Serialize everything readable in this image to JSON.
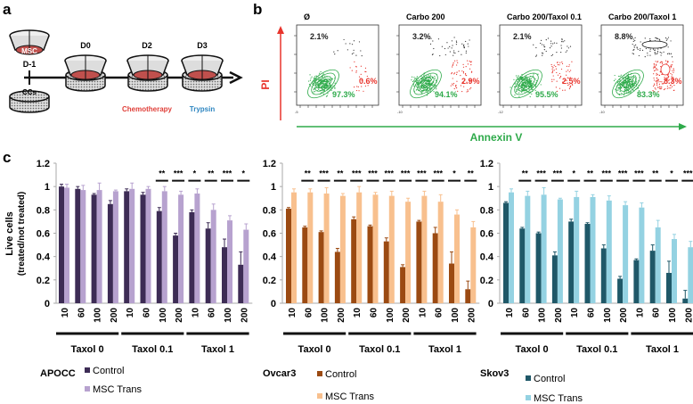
{
  "panels": {
    "a": "a",
    "b": "b",
    "c": "c"
  },
  "panel_a": {
    "msc_label": "MSC",
    "ccs_label": "CCs",
    "days": [
      "D-1",
      "D0",
      "D2",
      "D3"
    ],
    "chemo_label": "Chemotherapy",
    "trypsin_label": "Trypsin",
    "colors": {
      "msc": "#c0504d",
      "chemo": "#e0403a",
      "trypsin": "#2e86c1"
    }
  },
  "panel_b": {
    "y_axis_label": "PI",
    "x_axis_label": "Annexin V",
    "plots": [
      {
        "title": "Ø",
        "necrotic": "2.1%",
        "apoptotic": "0.6%",
        "live": "97.3%",
        "x_min_tick": "-5"
      },
      {
        "title": "Carbo 200",
        "necrotic": "3.2%",
        "apoptotic": "2.9%",
        "live": "94.1%",
        "x_min_tick": "-10"
      },
      {
        "title": "Carbo 200/Taxol 0.1",
        "necrotic": "2.1%",
        "apoptotic": "2.5%",
        "live": "95.5%",
        "x_min_tick": "-12"
      },
      {
        "title": "Carbo 200/Taxol 1",
        "necrotic": "8.8%",
        "apoptotic": "8.3%",
        "live": "83.3%",
        "x_min_tick": "-10"
      }
    ],
    "colors": {
      "live": "#2eaa4a",
      "apoptotic": "#e8342c",
      "necrotic": "#222222",
      "pi_axis": "#e8342c",
      "annexin_axis": "#2eaa4a"
    }
  },
  "chart_data": [
    {
      "type": "bar",
      "title": "APOCC",
      "ylabel": "Live cells (treated/not treated)",
      "ylim": [
        0,
        1.2
      ],
      "yticks": [
        "0",
        "0.2",
        "0.4",
        "0.6",
        "0.8",
        "1",
        "1.2"
      ],
      "categories": [
        "10",
        "60",
        "100",
        "200",
        "10",
        "60",
        "100",
        "200",
        "10",
        "60",
        "100",
        "200"
      ],
      "groups": [
        "Taxol 0",
        "Taxol 0.1",
        "Taxol 1"
      ],
      "series": [
        {
          "name": "Control",
          "color": "#3d2c55",
          "values": [
            1.0,
            0.98,
            0.93,
            0.85,
            0.96,
            0.93,
            0.79,
            0.58,
            0.78,
            0.64,
            0.48,
            0.33
          ],
          "errors": [
            0.02,
            0.02,
            0.01,
            0.03,
            0.02,
            0.02,
            0.03,
            0.02,
            0.02,
            0.05,
            0.07,
            0.11
          ]
        },
        {
          "name": "MSC Trans",
          "color": "#b7a2cf",
          "values": [
            0.99,
            0.97,
            0.97,
            0.96,
            0.98,
            0.98,
            0.96,
            0.93,
            0.94,
            0.8,
            0.71,
            0.63
          ],
          "errors": [
            0.03,
            0.04,
            0.06,
            0.01,
            0.05,
            0.02,
            0.04,
            0.03,
            0.04,
            0.05,
            0.04,
            0.05
          ]
        }
      ],
      "significance": [
        "",
        "",
        "",
        "",
        "",
        "",
        "**",
        "***",
        "*",
        "**",
        "***",
        "*"
      ]
    },
    {
      "type": "bar",
      "title": "Ovcar3",
      "ylabel": "",
      "ylim": [
        0,
        1.2
      ],
      "yticks": [
        "0",
        "0.2",
        "0.4",
        "0.6",
        "0.8",
        "1",
        "1.2"
      ],
      "categories": [
        "10",
        "60",
        "100",
        "200",
        "10",
        "60",
        "100",
        "200",
        "10",
        "60",
        "100",
        "200"
      ],
      "groups": [
        "Taxol 0",
        "Taxol 0.1",
        "Taxol 1"
      ],
      "series": [
        {
          "name": "Control",
          "color": "#9b4a12",
          "values": [
            0.81,
            0.65,
            0.61,
            0.44,
            0.72,
            0.66,
            0.53,
            0.31,
            0.7,
            0.6,
            0.34,
            0.12
          ],
          "errors": [
            0.01,
            0.01,
            0.01,
            0.03,
            0.02,
            0.01,
            0.03,
            0.02,
            0.01,
            0.05,
            0.1,
            0.07
          ]
        },
        {
          "name": "MSC Trans",
          "color": "#f8c08e",
          "values": [
            0.95,
            0.95,
            0.94,
            0.92,
            0.95,
            0.93,
            0.92,
            0.87,
            0.92,
            0.87,
            0.76,
            0.65
          ],
          "errors": [
            0.03,
            0.03,
            0.05,
            0.02,
            0.05,
            0.02,
            0.04,
            0.03,
            0.04,
            0.06,
            0.04,
            0.05
          ]
        }
      ],
      "significance": [
        "",
        "**",
        "***",
        "**",
        "***",
        "***",
        "***",
        "***",
        "***",
        "***",
        "*",
        "**"
      ]
    },
    {
      "type": "bar",
      "title": "Skov3",
      "ylabel": "",
      "ylim": [
        0,
        1.2
      ],
      "yticks": [
        "0",
        "0.2",
        "0.4",
        "0.6",
        "0.8",
        "1",
        "1.2"
      ],
      "categories": [
        "10",
        "60",
        "100",
        "200",
        "10",
        "60",
        "100",
        "200",
        "10",
        "60",
        "100",
        "200"
      ],
      "groups": [
        "Taxol 0",
        "Taxol 0.1",
        "Taxol 1"
      ],
      "series": [
        {
          "name": "Control",
          "color": "#1f5868",
          "values": [
            0.86,
            0.64,
            0.6,
            0.41,
            0.7,
            0.68,
            0.47,
            0.21,
            0.37,
            0.45,
            0.26,
            0.04
          ],
          "errors": [
            0.01,
            0.01,
            0.01,
            0.03,
            0.02,
            0.01,
            0.03,
            0.02,
            0.01,
            0.05,
            0.1,
            0.07
          ]
        },
        {
          "name": "MSC Trans",
          "color": "#94d2e2",
          "values": [
            0.95,
            0.92,
            0.93,
            0.89,
            0.91,
            0.91,
            0.88,
            0.84,
            0.82,
            0.65,
            0.55,
            0.48
          ],
          "errors": [
            0.03,
            0.04,
            0.06,
            0.01,
            0.05,
            0.02,
            0.04,
            0.03,
            0.04,
            0.06,
            0.04,
            0.05
          ]
        }
      ],
      "significance": [
        "",
        "**",
        "***",
        "***",
        "*",
        "**",
        "***",
        "***",
        "***",
        "**",
        "*",
        "***"
      ]
    }
  ]
}
